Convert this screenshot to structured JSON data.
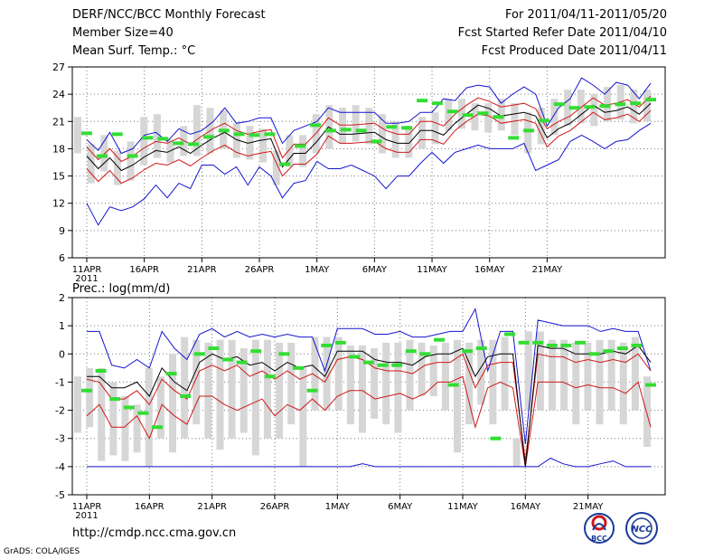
{
  "header": {
    "title": "DERF/NCC/BCC Monthly Forecast",
    "member_size": "Member Size=40",
    "variable": "Mean Surf. Temp.: °C",
    "forecast_period": "For 2011/04/11-2011/05/20",
    "start_date": "Fcst Started Refer Date 2011/04/10",
    "produced_date": "Fcst Produced Date 2011/04/11"
  },
  "footer": {
    "url": "http://cmdp.ncc.cma.gov.cn",
    "credit": "GrADS: COLA/IGES"
  },
  "logos": {
    "bcc_text": "BCC",
    "ncc_text": "NCC"
  },
  "colors": {
    "mean": "#000000",
    "inner_band": "#d01818",
    "outer_band": "#1414d0",
    "observed_marker": "#33dd33",
    "box": "#d6d6d6",
    "grid": "#777777"
  },
  "chart_data": [
    {
      "type": "line",
      "title": "Mean Surf. Temp.: °C",
      "x_labels": [
        "11APR",
        "16APR",
        "21APR",
        "26APR",
        "1MAY",
        "6MAY",
        "11MAY",
        "16MAY",
        "21MAY"
      ],
      "x_year_label": "2011",
      "ylim": [
        6,
        27
      ],
      "yticks": [
        6,
        9,
        12,
        15,
        18,
        21,
        24,
        27
      ],
      "grid": true,
      "series": [
        {
          "name": "mean",
          "values": [
            17.2,
            15.8,
            17.0,
            15.6,
            16.2,
            17.1,
            17.8,
            17.6,
            18.2,
            17.5,
            18.4,
            19.2,
            19.8,
            19.0,
            18.6,
            18.9,
            19.1,
            16.0,
            17.5,
            17.5,
            18.8,
            20.4,
            19.6,
            19.6,
            19.7,
            19.8,
            19.0,
            18.6,
            18.6,
            20.0,
            20.0,
            19.5,
            20.8,
            21.8,
            22.8,
            22.4,
            21.6,
            21.8,
            22.0,
            21.6,
            19.2,
            20.2,
            20.8,
            21.8,
            22.8,
            22.0,
            22.2,
            22.6,
            21.8,
            23.0
          ]
        },
        {
          "name": "upper_red",
          "values": [
            18.2,
            16.8,
            18.0,
            16.6,
            17.2,
            18.1,
            18.8,
            18.6,
            19.2,
            18.5,
            19.4,
            20.2,
            20.8,
            20.0,
            19.6,
            19.9,
            20.1,
            17.0,
            18.5,
            18.5,
            19.8,
            21.4,
            20.6,
            20.6,
            20.7,
            20.8,
            20.0,
            19.6,
            19.6,
            21.0,
            21.0,
            20.5,
            21.8,
            22.8,
            23.6,
            23.2,
            22.6,
            22.8,
            23.0,
            22.4,
            20.2,
            21.0,
            21.6,
            22.6,
            23.6,
            22.8,
            23.0,
            23.4,
            22.6,
            23.8
          ]
        },
        {
          "name": "lower_red",
          "values": [
            15.8,
            14.4,
            15.6,
            14.2,
            14.8,
            15.7,
            16.4,
            16.2,
            16.8,
            16.1,
            17.0,
            17.8,
            18.4,
            17.6,
            17.2,
            17.5,
            17.7,
            15.0,
            16.3,
            16.3,
            17.4,
            19.4,
            18.6,
            18.6,
            18.7,
            18.8,
            18.0,
            17.6,
            17.6,
            19.0,
            19.0,
            18.5,
            20.0,
            21.0,
            21.8,
            21.6,
            20.8,
            21.0,
            21.2,
            20.8,
            18.2,
            19.4,
            20.0,
            21.0,
            22.0,
            21.2,
            21.4,
            21.8,
            21.0,
            22.2
          ]
        },
        {
          "name": "upper_blue",
          "values": [
            19.0,
            17.8,
            19.8,
            17.5,
            18.0,
            19.5,
            19.8,
            18.8,
            20.2,
            19.6,
            20.0,
            21.0,
            22.5,
            20.8,
            21.0,
            21.4,
            21.4,
            18.6,
            20.0,
            20.5,
            21.0,
            22.5,
            22.0,
            22.0,
            22.0,
            22.0,
            20.8,
            20.8,
            21.0,
            22.0,
            22.0,
            23.5,
            23.3,
            24.7,
            25.0,
            24.8,
            23.0,
            24.0,
            24.8,
            24.0,
            20.5,
            22.5,
            23.5,
            25.8,
            25.0,
            24.0,
            25.3,
            25.0,
            23.5,
            25.2
          ]
        },
        {
          "name": "lower_blue",
          "values": [
            12.0,
            9.6,
            11.6,
            11.2,
            11.6,
            12.5,
            14.0,
            12.6,
            14.2,
            13.6,
            16.2,
            16.2,
            15.2,
            16.0,
            14.0,
            16.0,
            15.0,
            12.6,
            14.2,
            14.5,
            16.6,
            15.8,
            15.8,
            16.2,
            15.6,
            15.0,
            13.6,
            15.0,
            15.0,
            16.4,
            17.6,
            16.4,
            17.6,
            18.0,
            18.4,
            18.0,
            18.0,
            18.0,
            18.6,
            15.6,
            16.2,
            16.8,
            18.8,
            19.5,
            18.8,
            18.0,
            18.8,
            19.0,
            20.0,
            20.8
          ]
        },
        {
          "name": "observed",
          "values": [
            19.7,
            17.2,
            19.6,
            17.2,
            19.2,
            19.1,
            18.6,
            18.5,
            19.3,
            20.0,
            19.6,
            19.5,
            19.6,
            16.3,
            18.3,
            20.6,
            20.0,
            20.1,
            20.0,
            18.8,
            20.4,
            20.3,
            23.3,
            23.0,
            22.1,
            21.7,
            21.9,
            21.5,
            19.2,
            20.0,
            21.1,
            22.9,
            22.5,
            22.6,
            22.7,
            22.9,
            23.0,
            23.4
          ]
        },
        {
          "name": "box_top",
          "values": [
            21.5,
            18.5,
            19.5,
            17.8,
            18.8,
            21.5,
            21.8,
            19.0,
            20.5,
            22.8,
            22.5,
            22.2,
            20.8,
            20.5,
            20.2,
            17.8,
            19.5,
            19.5,
            21.8,
            22.8,
            22.5,
            22.8,
            22.5,
            21.8,
            21.0,
            20.5,
            21.5,
            22.0,
            23.5,
            23.5,
            23.0,
            23.0,
            23.5,
            23.0,
            22.0,
            22.5,
            23.5,
            24.5,
            24.5,
            24.0,
            24.8,
            25.0,
            24.5,
            24.5
          ]
        },
        {
          "name": "box_bottom",
          "values": [
            17.5,
            14.2,
            15.5,
            14.0,
            14.5,
            16.2,
            17.0,
            16.5,
            17.2,
            17.2,
            17.5,
            18.0,
            17.0,
            16.8,
            16.5,
            14.0,
            16.0,
            16.0,
            17.5,
            18.0,
            18.5,
            18.8,
            18.5,
            17.5,
            17.0,
            17.0,
            18.0,
            18.5,
            20.0,
            20.2,
            20.0,
            19.8,
            20.0,
            19.5,
            17.5,
            18.5,
            19.5,
            20.5,
            20.8,
            20.5,
            21.0,
            21.2,
            20.8,
            21.0
          ]
        }
      ]
    },
    {
      "type": "line",
      "title": "Prec.: log(mm/d)",
      "x_labels": [
        "11APR",
        "16APR",
        "21APR",
        "26APR",
        "1MAY",
        "6MAY",
        "11MAY",
        "16MAY",
        "21MAY"
      ],
      "x_year_label": "2011",
      "ylim": [
        -5,
        2
      ],
      "yticks": [
        -5,
        -4,
        -3,
        -2,
        -1,
        0,
        1,
        2
      ],
      "grid": true,
      "series": [
        {
          "name": "mean",
          "values": [
            -0.8,
            -0.8,
            -1.2,
            -1.2,
            -1.0,
            -1.5,
            -0.5,
            -1.0,
            -1.3,
            -0.3,
            0.0,
            -0.2,
            -0.1,
            -0.4,
            -0.3,
            -0.6,
            -0.3,
            -0.5,
            -0.4,
            -0.8,
            0.1,
            0.1,
            0.1,
            -0.2,
            -0.3,
            -0.3,
            -0.4,
            -0.1,
            0.0,
            0.0,
            0.2,
            -0.8,
            -0.1,
            0.0,
            0.0,
            -4.0,
            0.3,
            0.2,
            0.2,
            0.0,
            0.0,
            0.0,
            0.1,
            0.0,
            0.3,
            -0.3
          ]
        },
        {
          "name": "upper_red",
          "values": [
            -0.9,
            -1.0,
            -1.6,
            -1.6,
            -1.3,
            -1.8,
            -0.9,
            -1.3,
            -1.6,
            -0.6,
            -0.4,
            -0.6,
            -0.4,
            -0.8,
            -0.6,
            -0.9,
            -0.6,
            -0.9,
            -0.7,
            -1.0,
            -0.2,
            -0.1,
            -0.2,
            -0.5,
            -0.6,
            -0.6,
            -0.7,
            -0.4,
            -0.3,
            -0.3,
            0.0,
            -1.2,
            -0.4,
            -0.3,
            -0.3,
            -3.8,
            0.0,
            -0.1,
            -0.1,
            -0.3,
            -0.2,
            -0.3,
            -0.2,
            -0.3,
            0.0,
            -0.6
          ]
        },
        {
          "name": "lower_red",
          "values": [
            -2.2,
            -1.8,
            -2.6,
            -2.6,
            -2.2,
            -3.0,
            -1.8,
            -2.2,
            -2.5,
            -1.5,
            -1.5,
            -1.8,
            -2.0,
            -1.8,
            -1.6,
            -2.2,
            -1.8,
            -2.0,
            -1.6,
            -2.0,
            -1.5,
            -1.3,
            -1.3,
            -1.6,
            -1.5,
            -1.4,
            -1.6,
            -1.4,
            -1.0,
            -1.0,
            -0.8,
            -2.6,
            -1.2,
            -1.0,
            -1.2,
            -4.0,
            -1.0,
            -1.0,
            -1.0,
            -1.2,
            -1.1,
            -1.2,
            -1.2,
            -1.4,
            -1.0,
            -2.6
          ]
        },
        {
          "name": "upper_blue",
          "values": [
            0.8,
            0.8,
            -0.4,
            -0.5,
            -0.2,
            -0.5,
            0.8,
            0.2,
            -0.2,
            0.7,
            0.9,
            0.6,
            0.8,
            0.6,
            0.7,
            0.6,
            0.7,
            0.6,
            0.6,
            -0.6,
            0.9,
            0.9,
            0.9,
            0.7,
            0.7,
            0.8,
            0.6,
            0.6,
            0.7,
            0.8,
            0.8,
            1.6,
            -0.6,
            0.8,
            0.8,
            -3.2,
            1.2,
            1.1,
            1.0,
            1.0,
            1.0,
            0.8,
            0.9,
            0.8,
            0.8,
            -0.6
          ]
        },
        {
          "name": "lower_blue",
          "values": [
            -4.0,
            -4.0,
            -4.0,
            -4.0,
            -4.0,
            -4.0,
            -4.0,
            -4.0,
            -4.0,
            -4.0,
            -4.0,
            -4.0,
            -4.0,
            -4.0,
            -4.0,
            -4.0,
            -4.0,
            -4.0,
            -4.0,
            -4.0,
            -4.0,
            -4.0,
            -3.9,
            -4.0,
            -4.0,
            -4.0,
            -4.0,
            -4.0,
            -4.0,
            -4.0,
            -4.0,
            -4.0,
            -4.0,
            -4.0,
            -4.0,
            -4.0,
            -4.0,
            -3.7,
            -3.9,
            -4.0,
            -4.0,
            -3.9,
            -3.8,
            -4.0,
            -4.0,
            -4.0
          ]
        },
        {
          "name": "observed",
          "values": [
            -1.3,
            -0.6,
            -1.6,
            -1.9,
            -2.1,
            -2.6,
            -0.7,
            -1.5,
            -0.0,
            0.2,
            -0.2,
            -0.3,
            0.1,
            -0.8,
            0.0,
            -0.5,
            -1.3,
            0.3,
            0.4,
            -0.1,
            -0.3,
            -0.4,
            -0.4,
            0.1,
            0.0,
            0.5,
            -1.1,
            0.1,
            0.2,
            -3.0,
            0.7,
            0.4,
            0.4,
            0.3,
            0.3,
            0.4,
            -0.0,
            0.1,
            0.2,
            0.3,
            -1.1
          ]
        },
        {
          "name": "box_top",
          "values": [
            -0.8,
            -0.5,
            -0.5,
            -1.0,
            -1.5,
            -1.8,
            -0.5,
            -0.8,
            0.0,
            0.6,
            0.5,
            0.4,
            0.5,
            0.5,
            0.2,
            0.5,
            0.5,
            0.4,
            0.4,
            -0.5,
            0.6,
            0.6,
            0.6,
            0.3,
            0.3,
            0.2,
            0.4,
            0.4,
            0.5,
            0.4,
            0.3,
            0.4,
            0.5,
            0.4,
            0.5,
            0.5,
            0.6,
            -3.0,
            0.8,
            0.8,
            0.5,
            0.5,
            0.4,
            0.4,
            0.5,
            0.5,
            0.4,
            0.6,
            -0.8
          ]
        },
        {
          "name": "box_bottom",
          "values": [
            -2.8,
            -2.6,
            -3.8,
            -3.6,
            -3.8,
            -3.5,
            -4.0,
            -3.0,
            -3.5,
            -3.0,
            -2.5,
            -3.0,
            -3.4,
            -3.0,
            -2.8,
            -3.6,
            -3.0,
            -3.0,
            -2.5,
            -4.0,
            -2.0,
            -2.0,
            -2.0,
            -2.5,
            -2.8,
            -2.3,
            -2.5,
            -2.8,
            -2.0,
            -1.5,
            -1.5,
            -2.0,
            -3.5,
            -2.5,
            -1.8,
            -2.5,
            -2.0,
            -4.0,
            -2.0,
            -2.0,
            -2.0,
            -2.0,
            -2.5,
            -2.0,
            -2.5,
            -2.0,
            -2.5,
            -2.0,
            -3.3
          ]
        }
      ]
    }
  ]
}
